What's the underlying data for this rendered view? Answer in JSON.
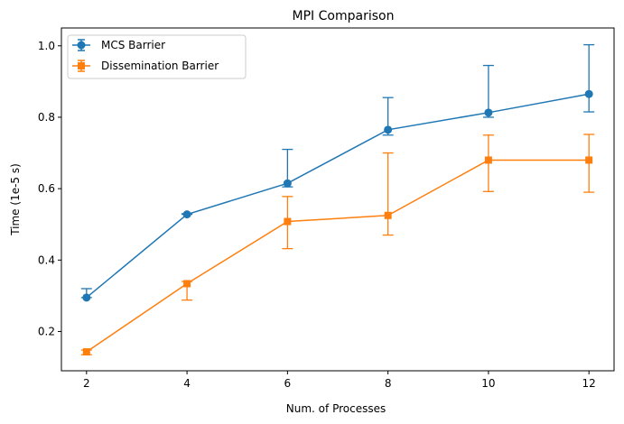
{
  "chart_data": {
    "type": "line",
    "title": "MPI Comparison",
    "xlabel": "Num. of Processes",
    "ylabel": "Time (1e-5 s)",
    "x": [
      2,
      4,
      6,
      8,
      10,
      12
    ],
    "xlim": [
      1.5,
      12.5
    ],
    "ylim": [
      0.09,
      1.05
    ],
    "xticks": [
      2,
      4,
      6,
      8,
      10,
      12
    ],
    "yticks": [
      0.2,
      0.4,
      0.6,
      0.8,
      1.0
    ],
    "ytick_labels": [
      "0.2",
      "0.4",
      "0.6",
      "0.8",
      "1.0"
    ],
    "grid": false,
    "legend_position": "top-left",
    "series": [
      {
        "name": "MCS Barrier",
        "color": "#1f77b4",
        "marker": "circle",
        "values": [
          0.295,
          0.528,
          0.615,
          0.765,
          0.813,
          0.865
        ],
        "err_low": [
          0.295,
          0.528,
          0.605,
          0.75,
          0.8,
          0.815
        ],
        "err_high": [
          0.32,
          0.53,
          0.71,
          0.855,
          0.945,
          1.003
        ]
      },
      {
        "name": "Dissemination Barrier",
        "color": "#ff7f0e",
        "marker": "square",
        "values": [
          0.143,
          0.334,
          0.508,
          0.525,
          0.68,
          0.68
        ],
        "err_low": [
          0.135,
          0.288,
          0.432,
          0.47,
          0.592,
          0.59
        ],
        "err_high": [
          0.148,
          0.34,
          0.578,
          0.7,
          0.75,
          0.752
        ]
      }
    ]
  }
}
